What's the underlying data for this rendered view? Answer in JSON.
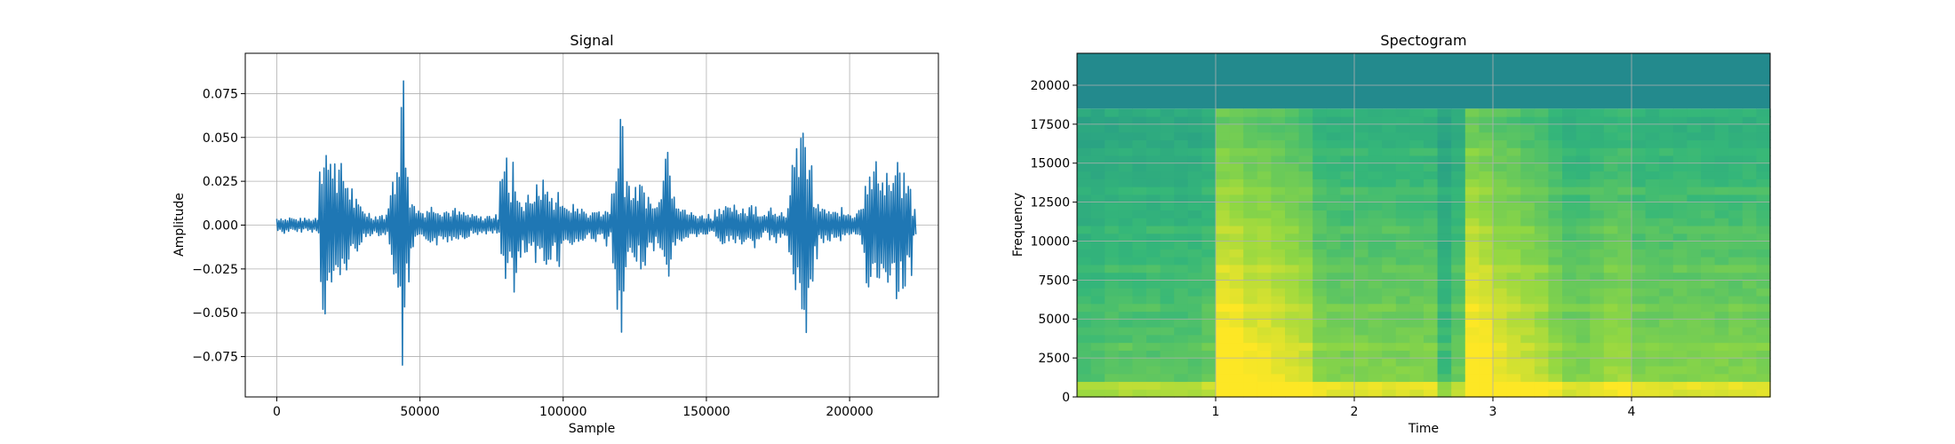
{
  "chart_data": [
    {
      "type": "line",
      "title": "Signal",
      "xlabel": "Sample",
      "ylabel": "Amplitude",
      "xlim": [
        -11000,
        231000
      ],
      "ylim": [
        -0.098,
        0.098
      ],
      "grid": true,
      "x_ticks": [
        {
          "v": 0,
          "t": "0"
        },
        {
          "v": 50000,
          "t": "50000"
        },
        {
          "v": 100000,
          "t": "100000"
        },
        {
          "v": 150000,
          "t": "150000"
        },
        {
          "v": 200000,
          "t": "200000"
        }
      ],
      "y_ticks": [
        {
          "v": -0.075,
          "t": "−0.075"
        },
        {
          "v": -0.05,
          "t": "−0.050"
        },
        {
          "v": -0.025,
          "t": "−0.025"
        },
        {
          "v": 0,
          "t": "0.000"
        },
        {
          "v": 0.025,
          "t": "0.025"
        },
        {
          "v": 0.05,
          "t": "0.050"
        },
        {
          "v": 0.075,
          "t": "0.075"
        }
      ],
      "color": "#1f77b4",
      "x_step": 1500,
      "envelope_upper": [
        0.005,
        0.005,
        0.004,
        0.005,
        0.004,
        0.004,
        0.004,
        0.004,
        0.004,
        0.005,
        0.047,
        0.056,
        0.04,
        0.05,
        0.038,
        0.036,
        0.03,
        0.024,
        0.016,
        0.012,
        0.01,
        0.008,
        0.006,
        0.006,
        0.007,
        0.006,
        0.02,
        0.03,
        0.055,
        0.09,
        0.045,
        0.02,
        0.012,
        0.01,
        0.009,
        0.011,
        0.012,
        0.013,
        0.01,
        0.01,
        0.009,
        0.01,
        0.008,
        0.008,
        0.007,
        0.006,
        0.006,
        0.005,
        0.005,
        0.006,
        0.006,
        0.006,
        0.045,
        0.049,
        0.02,
        0.038,
        0.019,
        0.016,
        0.018,
        0.018,
        0.025,
        0.022,
        0.03,
        0.02,
        0.017,
        0.024,
        0.017,
        0.01,
        0.013,
        0.012,
        0.012,
        0.01,
        0.008,
        0.008,
        0.01,
        0.008,
        0.012,
        0.008,
        0.025,
        0.042,
        0.078,
        0.035,
        0.028,
        0.022,
        0.025,
        0.024,
        0.02,
        0.015,
        0.012,
        0.028,
        0.052,
        0.056,
        0.03,
        0.018,
        0.012,
        0.009,
        0.008,
        0.007,
        0.007,
        0.006,
        0.007,
        0.005,
        0.01,
        0.013,
        0.012,
        0.01,
        0.012,
        0.009,
        0.012,
        0.01,
        0.015,
        0.013,
        0.008,
        0.006,
        0.009,
        0.012,
        0.01,
        0.009,
        0.008,
        0.02,
        0.035,
        0.052,
        0.068,
        0.045,
        0.038,
        0.015,
        0.012,
        0.01,
        0.01,
        0.008,
        0.008,
        0.01,
        0.008,
        0.009,
        0.007,
        0.01,
        0.018,
        0.035,
        0.03,
        0.038,
        0.04,
        0.03,
        0.035,
        0.025,
        0.042,
        0.03,
        0.03,
        0.025,
        0.01
      ],
      "envelope_lower": [
        -0.004,
        -0.005,
        -0.004,
        -0.004,
        -0.005,
        -0.004,
        -0.003,
        -0.004,
        -0.004,
        -0.005,
        -0.05,
        -0.054,
        -0.04,
        -0.045,
        -0.035,
        -0.03,
        -0.028,
        -0.02,
        -0.015,
        -0.012,
        -0.01,
        -0.007,
        -0.005,
        -0.006,
        -0.006,
        -0.006,
        -0.02,
        -0.03,
        -0.075,
        -0.088,
        -0.045,
        -0.02,
        -0.012,
        -0.01,
        -0.009,
        -0.01,
        -0.011,
        -0.012,
        -0.01,
        -0.01,
        -0.009,
        -0.009,
        -0.008,
        -0.008,
        -0.007,
        -0.006,
        -0.006,
        -0.005,
        -0.005,
        -0.006,
        -0.006,
        -0.006,
        -0.02,
        -0.032,
        -0.027,
        -0.05,
        -0.025,
        -0.018,
        -0.02,
        -0.02,
        -0.025,
        -0.022,
        -0.028,
        -0.02,
        -0.017,
        -0.024,
        -0.016,
        -0.01,
        -0.013,
        -0.012,
        -0.012,
        -0.01,
        -0.008,
        -0.008,
        -0.01,
        -0.008,
        -0.012,
        -0.008,
        -0.04,
        -0.065,
        -0.075,
        -0.033,
        -0.025,
        -0.022,
        -0.025,
        -0.024,
        -0.02,
        -0.015,
        -0.012,
        -0.022,
        -0.03,
        -0.03,
        -0.018,
        -0.012,
        -0.01,
        -0.008,
        -0.008,
        -0.007,
        -0.007,
        -0.006,
        -0.007,
        -0.005,
        -0.01,
        -0.012,
        -0.012,
        -0.01,
        -0.012,
        -0.009,
        -0.012,
        -0.01,
        -0.015,
        -0.013,
        -0.008,
        -0.006,
        -0.009,
        -0.012,
        -0.01,
        -0.009,
        -0.008,
        -0.02,
        -0.045,
        -0.052,
        -0.055,
        -0.065,
        -0.05,
        -0.02,
        -0.012,
        -0.01,
        -0.01,
        -0.008,
        -0.008,
        -0.01,
        -0.008,
        -0.009,
        -0.007,
        -0.01,
        -0.02,
        -0.045,
        -0.03,
        -0.04,
        -0.042,
        -0.03,
        -0.035,
        -0.025,
        -0.045,
        -0.045,
        -0.035,
        -0.03,
        -0.01
      ]
    },
    {
      "type": "heatmap",
      "title": "Spectogram",
      "xlabel": "Time",
      "ylabel": "Frequency",
      "xlim": [
        0,
        5.0
      ],
      "ylim": [
        0,
        22050
      ],
      "grid": true,
      "x_ticks": [
        {
          "v": 1,
          "t": "1"
        },
        {
          "v": 2,
          "t": "2"
        },
        {
          "v": 3,
          "t": "3"
        },
        {
          "v": 4,
          "t": "4"
        }
      ],
      "y_ticks": [
        {
          "v": 0,
          "t": "0"
        },
        {
          "v": 2500,
          "t": "2500"
        },
        {
          "v": 5000,
          "t": "5000"
        },
        {
          "v": 7500,
          "t": "7500"
        },
        {
          "v": 10000,
          "t": "10000"
        },
        {
          "v": 12500,
          "t": "12500"
        },
        {
          "v": 15000,
          "t": "15000"
        },
        {
          "v": 17500,
          "t": "17500"
        },
        {
          "v": 20000,
          "t": "20000"
        }
      ],
      "colormap": [
        "#21918c",
        "#35b779",
        "#90d743",
        "#fde725"
      ],
      "cutoff_hz": 18500,
      "high_band_color": "#238a8d",
      "time_step": 0.1,
      "activity": [
        0.25,
        0.25,
        0.3,
        0.3,
        0.3,
        0.3,
        0.3,
        0.3,
        0.3,
        0.35,
        0.95,
        0.95,
        0.85,
        0.85,
        0.8,
        0.75,
        0.7,
        0.5,
        0.45,
        0.45,
        0.45,
        0.45,
        0.45,
        0.45,
        0.45,
        0.45,
        0.2,
        0.35,
        0.95,
        0.9,
        0.8,
        0.75,
        0.7,
        0.65,
        0.55,
        0.45,
        0.45,
        0.5,
        0.55,
        0.55,
        0.45,
        0.45,
        0.45,
        0.45,
        0.45,
        0.45,
        0.45,
        0.45,
        0.45,
        0.45,
        0.45,
        0.45,
        0.45,
        0.45,
        0.45,
        0.45,
        0.45,
        0.45,
        0.45,
        0.45,
        0.45,
        0.45,
        0.45,
        0.45,
        0.45,
        0.45,
        0.45,
        0.45,
        0.45,
        0.45,
        0.45,
        0.45,
        0.45,
        0.45,
        0.45,
        0.45,
        0.45,
        0.45,
        0.45,
        0.45,
        0.45,
        0.45,
        0.45,
        0.45,
        0.45,
        0.45,
        0.45,
        0.45,
        0.45,
        0.45,
        0.45,
        0.45,
        0.45,
        0.45,
        0.45,
        0.45,
        0.45,
        0.45,
        0.45,
        0.45
      ]
    }
  ]
}
